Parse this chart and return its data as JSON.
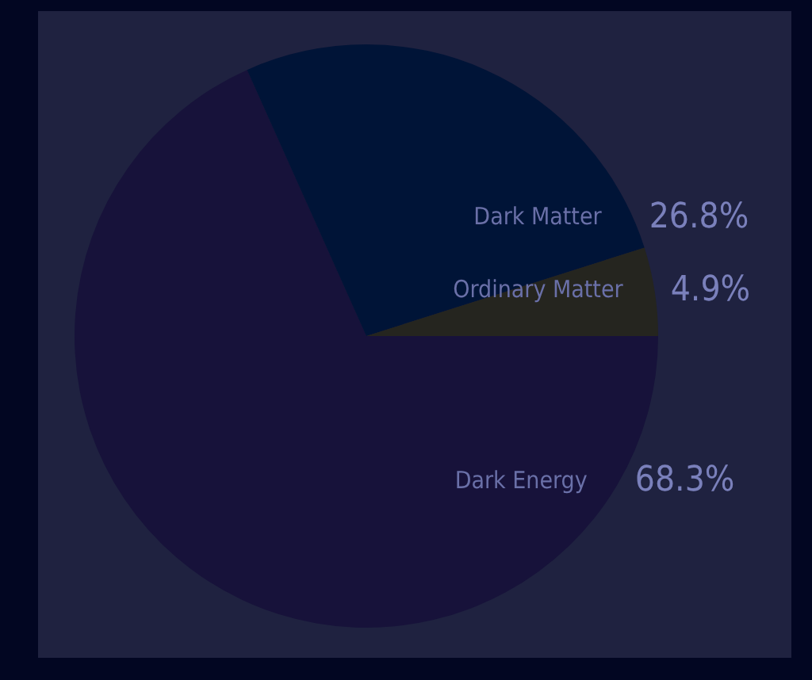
{
  "chart_data": {
    "type": "pie",
    "categories": [
      "Dark Energy",
      "Dark Matter",
      "Ordinary Matter"
    ],
    "values": [
      68.3,
      26.8,
      4.9
    ],
    "colors": [
      "#17123a",
      "#001437",
      "#25251f"
    ],
    "value_labels": [
      "68.3%",
      "26.8%",
      "4.9%"
    ],
    "legend": false
  }
}
